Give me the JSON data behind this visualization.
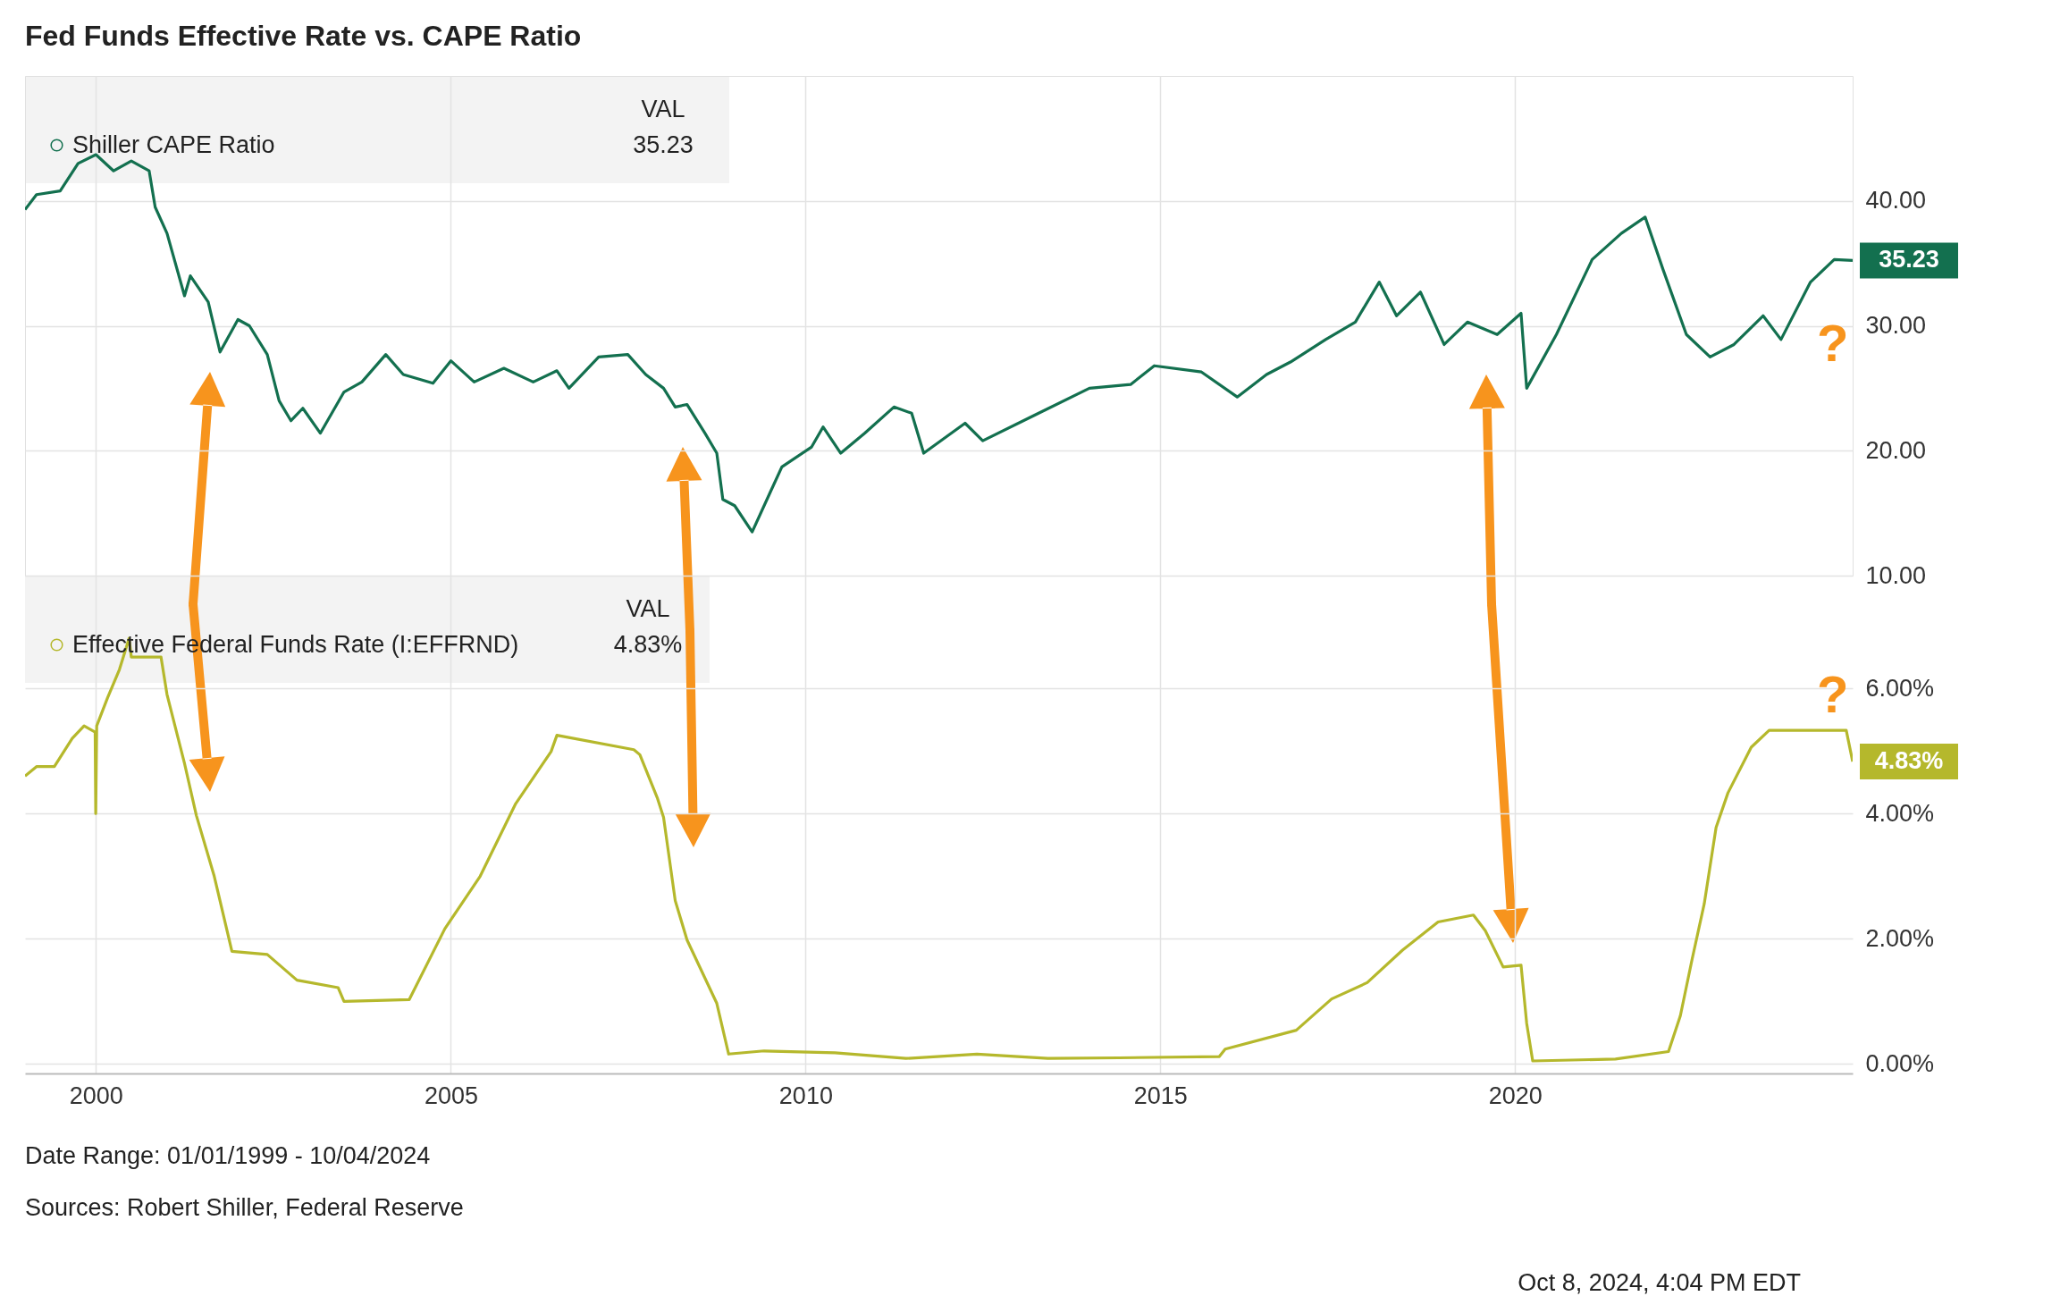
{
  "chart_data": [
    {
      "type": "line",
      "title": "Fed Funds Effective Rate vs. CAPE Ratio",
      "x": [
        "1999-01",
        "1999-03",
        "1999-07",
        "1999-10",
        "2000-01",
        "2000-04",
        "2000-07",
        "2000-10",
        "2000-11",
        "2001-01",
        "2001-04",
        "2001-05",
        "2001-08",
        "2001-10",
        "2002-01",
        "2002-03",
        "2002-06",
        "2002-08",
        "2002-10",
        "2002-12",
        "2003-03",
        "2003-07",
        "2003-10",
        "2004-02",
        "2004-05",
        "2004-10",
        "2005-01",
        "2005-05",
        "2005-10",
        "2006-03",
        "2006-07",
        "2006-09",
        "2007-02",
        "2007-07",
        "2007-10",
        "2008-01",
        "2008-03",
        "2008-05",
        "2008-08",
        "2008-10",
        "2008-11",
        "2009-01",
        "2009-04",
        "2009-07",
        "2009-09",
        "2010-02",
        "2010-04",
        "2010-07",
        "2010-11",
        "2011-04",
        "2011-07",
        "2011-09",
        "2012-04",
        "2012-07",
        "2013-04",
        "2014-01",
        "2014-08",
        "2014-12",
        "2015-08",
        "2016-02",
        "2016-07",
        "2016-11",
        "2017-05",
        "2017-10",
        "2018-02",
        "2018-05",
        "2018-09",
        "2019-01",
        "2019-05",
        "2019-10",
        "2020-02",
        "2020-03",
        "2020-08",
        "2021-02",
        "2021-07",
        "2021-11",
        "2022-02",
        "2022-06",
        "2022-10",
        "2023-02",
        "2023-07",
        "2023-10",
        "2024-03",
        "2024-07",
        "2024-10-04"
      ],
      "series": [
        {
          "name": "Shiller CAPE Ratio",
          "color": "#13704f",
          "values": [
            39.3,
            40.5,
            40.8,
            43.0,
            43.7,
            42.4,
            43.2,
            42.4,
            39.5,
            37.4,
            32.4,
            34.0,
            31.9,
            27.9,
            30.5,
            30.0,
            27.7,
            24.0,
            22.4,
            23.4,
            21.4,
            24.7,
            25.5,
            27.7,
            26.1,
            25.4,
            27.2,
            25.5,
            26.6,
            25.5,
            26.4,
            25.0,
            27.5,
            27.7,
            26.1,
            25.0,
            23.5,
            23.7,
            21.4,
            19.8,
            16.1,
            15.6,
            13.5,
            16.6,
            18.7,
            20.3,
            21.9,
            19.8,
            21.4,
            23.5,
            23.0,
            19.8,
            22.2,
            20.8,
            22.9,
            25.0,
            25.3,
            26.8,
            26.3,
            24.3,
            26.1,
            27.1,
            28.9,
            30.3,
            33.5,
            30.8,
            32.7,
            28.5,
            30.3,
            29.3,
            31.0,
            25.0,
            29.3,
            35.3,
            37.4,
            38.7,
            34.5,
            29.3,
            27.5,
            28.5,
            30.8,
            28.9,
            33.5,
            35.3,
            35.23
          ]
        }
      ],
      "xlim": [
        "1999-01-01",
        "2024-10-04"
      ],
      "xticks": [
        {
          "value": "2000-01-01",
          "label": null
        },
        {
          "value": "2005-01-01",
          "label": null
        },
        {
          "value": "2010-01-01",
          "label": null
        },
        {
          "value": "2015-01-01",
          "label": null
        },
        {
          "value": "2020-01-01",
          "label": null
        }
      ],
      "ylim": [
        10,
        50
      ],
      "yticks": [
        {
          "value": 10,
          "label": "10.00"
        },
        {
          "value": 20,
          "label": "20.00"
        },
        {
          "value": 30,
          "label": "30.00"
        },
        {
          "value": 40,
          "label": "40.00"
        }
      ],
      "tick_labels": "y",
      "grid": true,
      "legend": "top left",
      "annotations": [
        "VAL",
        "35.23",
        {
          "text": "35.23",
          "x": "2024-10-04",
          "y": 35.23
        },
        "?"
      ]
    },
    {
      "type": "line",
      "x": [
        "1999-01",
        "1999-03",
        "1999-06",
        "1999-09",
        "1999-11",
        "1999-12-28",
        "1999-12-31",
        "2000-01-05",
        "2000-03",
        "2000-05",
        "2000-06-20",
        "2000-07",
        "2000-12",
        "2001-01",
        "2001-04",
        "2001-06",
        "2001-09",
        "2001-12",
        "2002-06",
        "2002-11",
        "2003-06",
        "2003-07",
        "2004-06",
        "2004-12",
        "2005-06",
        "2005-12",
        "2006-06",
        "2006-07",
        "2007-08",
        "2007-09",
        "2007-12",
        "2008-01",
        "2008-03",
        "2008-05",
        "2008-10",
        "2008-12",
        "2009-06",
        "2010-06",
        "2011-06",
        "2012-06",
        "2013-06",
        "2014-06",
        "2015-11",
        "2015-12",
        "2016-12",
        "2017-06",
        "2017-12",
        "2018-06",
        "2018-12",
        "2019-06",
        "2019-08",
        "2019-11",
        "2020-02",
        "2020-03",
        "2020-04",
        "2021-06",
        "2022-03",
        "2022-05",
        "2022-07",
        "2022-09",
        "2022-11",
        "2023-01",
        "2023-05",
        "2023-08",
        "2024-09",
        "2024-10-04"
      ],
      "series": [
        {
          "name": "Effective Federal Funds Rate (I:EFFRND)",
          "color": "#b5b82c",
          "values": [
            4.6,
            4.75,
            4.75,
            5.2,
            5.4,
            5.3,
            4.0,
            5.4,
            5.85,
            6.3,
            6.8,
            6.5,
            6.5,
            5.9,
            4.8,
            3.97,
            3.0,
            1.8,
            1.75,
            1.34,
            1.22,
            1.0,
            1.03,
            2.16,
            3.0,
            4.16,
            4.99,
            5.25,
            5.02,
            4.94,
            4.24,
            3.94,
            2.61,
            1.98,
            0.97,
            0.16,
            0.21,
            0.18,
            0.09,
            0.16,
            0.09,
            0.1,
            0.12,
            0.24,
            0.54,
            1.04,
            1.3,
            1.82,
            2.27,
            2.38,
            2.13,
            1.55,
            1.58,
            0.65,
            0.05,
            0.08,
            0.2,
            0.77,
            1.68,
            2.56,
            3.78,
            4.33,
            5.06,
            5.33,
            5.33,
            4.83
          ]
        }
      ],
      "xlim": [
        "1999-01-01",
        "2024-10-04"
      ],
      "xticks": [
        {
          "value": "2000-01-01",
          "label": "2000"
        },
        {
          "value": "2005-01-01",
          "label": "2005"
        },
        {
          "value": "2010-01-01",
          "label": "2010"
        },
        {
          "value": "2015-01-01",
          "label": "2015"
        },
        {
          "value": "2020-01-01",
          "label": "2020"
        }
      ],
      "ylim": [
        -0.15,
        7.8
      ],
      "yticks": [
        {
          "value": 0,
          "label": "0.00%"
        },
        {
          "value": 2,
          "label": "2.00%"
        },
        {
          "value": 4,
          "label": "4.00%"
        },
        {
          "value": 6,
          "label": "6.00%"
        }
      ],
      "grid": true,
      "legend": "top left",
      "annotations": [
        "VAL",
        "4.83%",
        {
          "text": "4.83%",
          "x": "2024-10-04",
          "y": 4.83
        },
        "?",
        "Date Range: 01/01/1999 - 10/04/2024",
        "Sources: Robert Shiller, Federal Reserve",
        "Oct 8, 2024, 4:04 PM EDT"
      ]
    }
  ]
}
